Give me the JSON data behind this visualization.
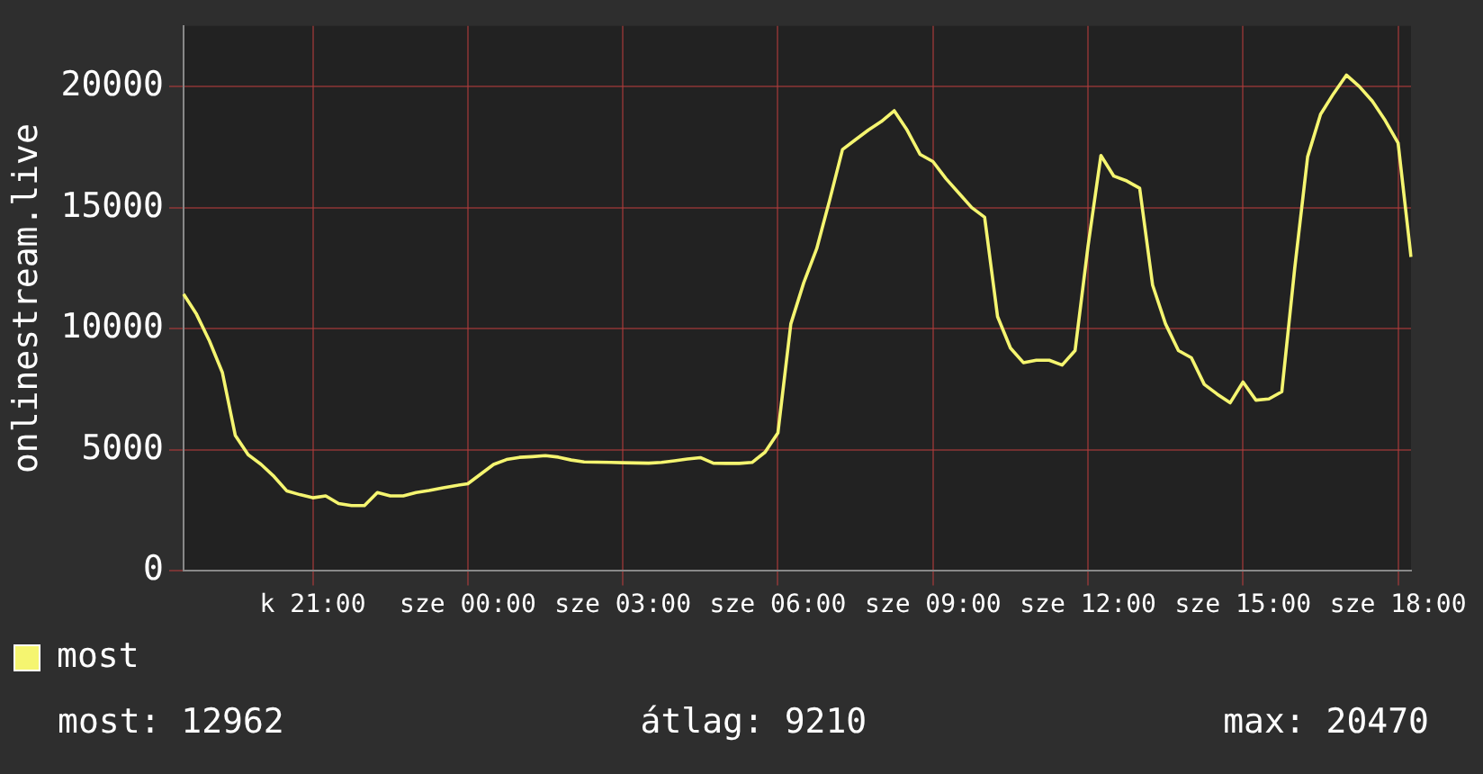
{
  "chart_data": {
    "type": "line",
    "ylabel": "onlinestream.live",
    "categories": [
      null,
      null,
      null,
      null,
      null,
      null,
      null,
      null,
      null,
      null,
      "k 21:00",
      null,
      null,
      null,
      null,
      null,
      null,
      null,
      null,
      null,
      null,
      null,
      "sze 00:00",
      null,
      null,
      null,
      null,
      null,
      null,
      null,
      null,
      null,
      null,
      null,
      "sze 03:00",
      null,
      null,
      null,
      null,
      null,
      null,
      null,
      null,
      null,
      null,
      null,
      "sze 06:00",
      null,
      null,
      null,
      null,
      null,
      null,
      null,
      null,
      null,
      null,
      null,
      "sze 09:00",
      null,
      null,
      null,
      null,
      null,
      null,
      null,
      null,
      null,
      null,
      null,
      "sze 12:00",
      null,
      null,
      null,
      null,
      null,
      null,
      null,
      null,
      null,
      null,
      null,
      "sze 15:00",
      null,
      null,
      null,
      null,
      null,
      null,
      null,
      null,
      null,
      null,
      null,
      "sze 18:00",
      null
    ],
    "series": [
      {
        "name": "most",
        "color": "#f5f570",
        "values": [
          11430,
          10600,
          9500,
          8200,
          5600,
          4800,
          4400,
          3900,
          3300,
          3150,
          3020,
          3100,
          2780,
          2700,
          2700,
          3240,
          3100,
          3100,
          3240,
          3320,
          3420,
          3520,
          3600,
          4000,
          4400,
          4600,
          4690,
          4720,
          4760,
          4700,
          4580,
          4500,
          4490,
          4480,
          4470,
          4460,
          4450,
          4480,
          4550,
          4620,
          4680,
          4450,
          4440,
          4440,
          4480,
          4900,
          5700,
          10200,
          11900,
          13300,
          15300,
          17400,
          17800,
          18200,
          18550,
          19000,
          18200,
          17200,
          16900,
          16200,
          15600,
          15000,
          14600,
          10500,
          9200,
          8600,
          8700,
          8700,
          8500,
          9100,
          13400,
          17150,
          16300,
          16100,
          15800,
          11800,
          10200,
          9100,
          8800,
          7700,
          7300,
          6940,
          7800,
          7050,
          7100,
          7400,
          12500,
          17100,
          18850,
          19700,
          20470,
          20000,
          19400,
          18600,
          17670,
          12962
        ]
      }
    ],
    "ylim": [
      0,
      22500
    ],
    "yticks": [
      0,
      5000,
      10000,
      15000,
      20000
    ],
    "grid": true,
    "legend": "bottom left",
    "marker": "none",
    "line_style": "solid",
    "annotations": [
      "most: 12962",
      "átlag: 9210",
      "max: 20470"
    ]
  }
}
